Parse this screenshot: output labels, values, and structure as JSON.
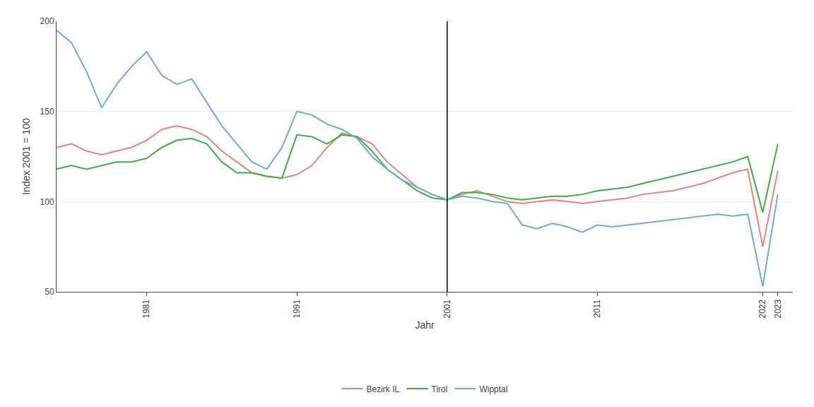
{
  "chart_data": {
    "type": "line",
    "xlabel": "Jahr",
    "ylabel": "Index 2001 = 100",
    "x": [
      1975,
      1976,
      1977,
      1978,
      1979,
      1980,
      1981,
      1982,
      1983,
      1984,
      1985,
      1986,
      1987,
      1988,
      1989,
      1990,
      1991,
      1992,
      1993,
      1994,
      1995,
      1996,
      1997,
      1998,
      1999,
      2000,
      2001,
      2002,
      2003,
      2004,
      2005,
      2006,
      2007,
      2008,
      2009,
      2010,
      2011,
      2012,
      2013,
      2014,
      2015,
      2016,
      2017,
      2018,
      2019,
      2020,
      2021,
      2022,
      2023
    ],
    "series": [
      {
        "name": "Bezirk IL",
        "color": "#f08080",
        "values": [
          130,
          132,
          128,
          126,
          128,
          130,
          134,
          140,
          142,
          140,
          136,
          128,
          122,
          116,
          114,
          113,
          115,
          120,
          130,
          138,
          136,
          132,
          122,
          115,
          108,
          104,
          101,
          104,
          106,
          103,
          100,
          99,
          100,
          101,
          100,
          99,
          100,
          101,
          102,
          104,
          105,
          106,
          108,
          110,
          113,
          116,
          118,
          75,
          117
        ]
      },
      {
        "name": "Tirol",
        "color": "#3cb043",
        "values": [
          118,
          120,
          118,
          120,
          122,
          122,
          124,
          130,
          134,
          135,
          132,
          122,
          116,
          116,
          114,
          113,
          137,
          136,
          132,
          137,
          136,
          128,
          118,
          112,
          106,
          102,
          101,
          105,
          105,
          104,
          102,
          101,
          102,
          103,
          103,
          104,
          106,
          107,
          108,
          110,
          112,
          114,
          116,
          118,
          120,
          122,
          125,
          94,
          132
        ]
      },
      {
        "name": "Wipptal",
        "color": "#6baed6",
        "values": [
          195,
          188,
          172,
          152,
          165,
          175,
          183,
          170,
          165,
          168,
          155,
          142,
          132,
          122,
          118,
          130,
          150,
          148,
          143,
          140,
          135,
          125,
          118,
          112,
          108,
          104,
          101,
          103,
          102,
          100,
          99,
          87,
          85,
          88,
          86,
          83,
          87,
          86,
          87,
          88,
          89,
          90,
          91,
          92,
          93,
          92,
          93,
          53,
          104
        ]
      }
    ],
    "xlim": [
      1975,
      2024
    ],
    "ylim": [
      50,
      200
    ],
    "xticks": [
      1981,
      1991,
      2001,
      2011,
      2022,
      2023
    ],
    "yticks": [
      50,
      100,
      150,
      200
    ],
    "vline_x": 2001,
    "grid": true,
    "legend": "bottom"
  }
}
